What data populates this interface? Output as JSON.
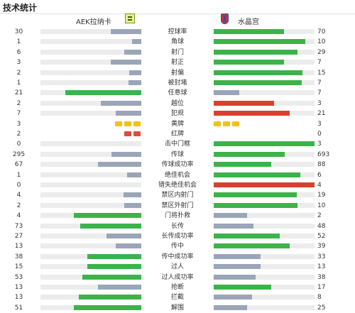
{
  "title": "技术统计",
  "home": {
    "name": "AEK拉纳卡"
  },
  "away": {
    "name": "水晶宫"
  },
  "colors": {
    "green": "#3cb34a",
    "grey": "#9aa5b8",
    "red": "#d9412e",
    "track": "#ececec"
  },
  "stats": [
    {
      "label": "控球率",
      "home": "30",
      "away": "70",
      "home_frac": 0.3,
      "away_frac": 0.7,
      "home_color": "grey",
      "away_color": "green"
    },
    {
      "label": "角球",
      "home": "1",
      "away": "10",
      "home_frac": 0.091,
      "away_frac": 0.909,
      "home_color": "grey",
      "away_color": "green"
    },
    {
      "label": "射门",
      "home": "6",
      "away": "29",
      "home_frac": 0.171,
      "away_frac": 0.829,
      "home_color": "grey",
      "away_color": "green"
    },
    {
      "label": "射正",
      "home": "3",
      "away": "7",
      "home_frac": 0.3,
      "away_frac": 0.7,
      "home_color": "grey",
      "away_color": "green"
    },
    {
      "label": "射偏",
      "home": "2",
      "away": "15",
      "home_frac": 0.118,
      "away_frac": 0.882,
      "home_color": "grey",
      "away_color": "green"
    },
    {
      "label": "被封堵",
      "home": "1",
      "away": "7",
      "home_frac": 0.125,
      "away_frac": 0.875,
      "home_color": "grey",
      "away_color": "green"
    },
    {
      "label": "任意球",
      "home": "21",
      "away": "7",
      "home_frac": 0.75,
      "away_frac": 0.25,
      "home_color": "green",
      "away_color": "grey"
    },
    {
      "label": "越位",
      "home": "2",
      "away": "3",
      "home_frac": 0.4,
      "away_frac": 0.6,
      "home_color": "grey",
      "away_color": "red"
    },
    {
      "label": "犯规",
      "home": "7",
      "away": "21",
      "home_frac": 0.25,
      "away_frac": 0.75,
      "home_color": "grey",
      "away_color": "red"
    },
    {
      "label": "黄牌",
      "home": "3",
      "away": "3",
      "home_cards": 3,
      "away_cards": 3,
      "card_color": "yellow"
    },
    {
      "label": "红牌",
      "home": "2",
      "away": "0",
      "home_cards": 2,
      "away_cards": 0,
      "card_color": "red"
    },
    {
      "label": "击中门框",
      "home": "0",
      "away": "3",
      "home_frac": 0.0,
      "away_frac": 1.0,
      "home_color": "grey",
      "away_color": "green"
    },
    {
      "label": "传球",
      "home": "295",
      "away": "693",
      "home_frac": 0.299,
      "away_frac": 0.701,
      "home_color": "grey",
      "away_color": "green"
    },
    {
      "label": "传球成功率",
      "home": "67",
      "away": "88",
      "home_frac": 0.432,
      "away_frac": 0.568,
      "home_color": "grey",
      "away_color": "green"
    },
    {
      "label": "绝佳机会",
      "home": "1",
      "away": "6",
      "home_frac": 0.143,
      "away_frac": 0.857,
      "home_color": "grey",
      "away_color": "green"
    },
    {
      "label": "错失绝佳机会",
      "home": "0",
      "away": "4",
      "home_frac": 0.0,
      "away_frac": 1.0,
      "home_color": "grey",
      "away_color": "red"
    },
    {
      "label": "禁区内射门",
      "home": "4",
      "away": "19",
      "home_frac": 0.174,
      "away_frac": 0.826,
      "home_color": "grey",
      "away_color": "green"
    },
    {
      "label": "禁区外射门",
      "home": "2",
      "away": "10",
      "home_frac": 0.167,
      "away_frac": 0.833,
      "home_color": "grey",
      "away_color": "green"
    },
    {
      "label": "门将扑救",
      "home": "4",
      "away": "2",
      "home_frac": 0.667,
      "away_frac": 0.333,
      "home_color": "green",
      "away_color": "grey"
    },
    {
      "label": "长传",
      "home": "73",
      "away": "48",
      "home_frac": 0.603,
      "away_frac": 0.397,
      "home_color": "green",
      "away_color": "grey"
    },
    {
      "label": "长传成功率",
      "home": "27",
      "away": "52",
      "home_frac": 0.342,
      "away_frac": 0.658,
      "home_color": "grey",
      "away_color": "green"
    },
    {
      "label": "传中",
      "home": "13",
      "away": "39",
      "home_frac": 0.25,
      "away_frac": 0.75,
      "home_color": "grey",
      "away_color": "green"
    },
    {
      "label": "传中成功率",
      "home": "38",
      "away": "33",
      "home_frac": 0.535,
      "away_frac": 0.465,
      "home_color": "green",
      "away_color": "grey"
    },
    {
      "label": "过人",
      "home": "15",
      "away": "13",
      "home_frac": 0.536,
      "away_frac": 0.464,
      "home_color": "green",
      "away_color": "grey"
    },
    {
      "label": "过人成功率",
      "home": "53",
      "away": "38",
      "home_frac": 0.582,
      "away_frac": 0.418,
      "home_color": "green",
      "away_color": "grey"
    },
    {
      "label": "抢断",
      "home": "13",
      "away": "17",
      "home_frac": 0.433,
      "away_frac": 0.567,
      "home_color": "grey",
      "away_color": "green"
    },
    {
      "label": "拦截",
      "home": "13",
      "away": "8",
      "home_frac": 0.619,
      "away_frac": 0.381,
      "home_color": "green",
      "away_color": "grey"
    },
    {
      "label": "解围",
      "home": "51",
      "away": "25",
      "home_frac": 0.671,
      "away_frac": 0.329,
      "home_color": "green",
      "away_color": "grey"
    }
  ]
}
